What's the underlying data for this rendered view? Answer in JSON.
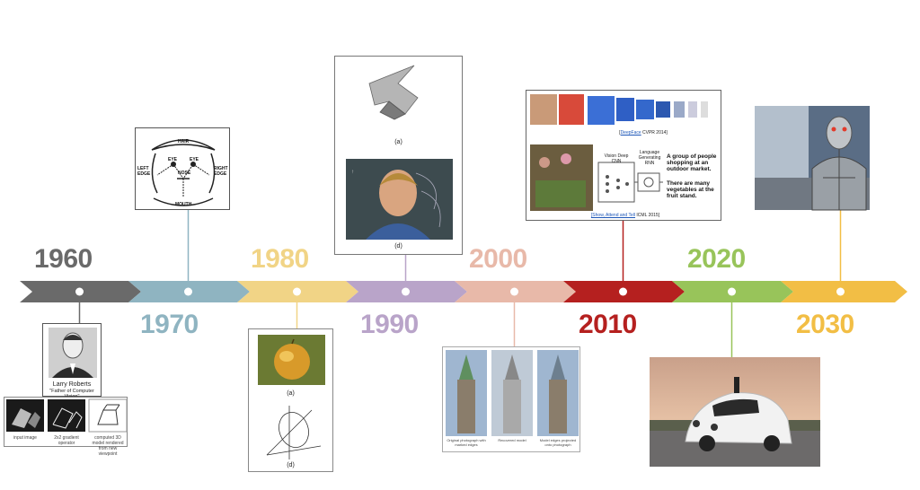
{
  "colors": {
    "1960": "#6a6a6a",
    "1970": "#8fb4c1",
    "1980": "#f1d486",
    "1990": "#b9a4c9",
    "2000": "#e8b9a9",
    "2010": "#b5201f",
    "2020": "#98c45a",
    "2030": "#f2be45"
  },
  "years": [
    {
      "label": "1960",
      "color": "#6a6a6a"
    },
    {
      "label": "1970",
      "color": "#8fb4c1"
    },
    {
      "label": "1980",
      "color": "#f1d486"
    },
    {
      "label": "1990",
      "color": "#b9a4c9"
    },
    {
      "label": "2000",
      "color": "#e8b9a9"
    },
    {
      "label": "2010",
      "color": "#b5201f"
    },
    {
      "label": "2020",
      "color": "#98c45a"
    },
    {
      "label": "2030",
      "color": "#f2be45"
    }
  ],
  "cards": {
    "c1960": {
      "name": "Larry Roberts",
      "subtitle": "\"Father of Computer Vision\"",
      "labels": [
        "input image",
        "2x2 gradient operator",
        "computed 3D model rendered from new viewpoint"
      ]
    },
    "c1970": {
      "hair": "HAIR",
      "left_edge": "LEFT EDGE",
      "right_edge": "RIGHT EDGE",
      "eye_left": "EYE",
      "eye_right": "EYE",
      "nose": "NOSE",
      "mouth": "MOUTH"
    },
    "c1980": {
      "caption_a": "(a)",
      "caption_d": "(d)"
    },
    "c1990": {
      "caption_a": "(a)",
      "caption_d": "(d)"
    },
    "c2000": {
      "labels": [
        "Original photograph with marked edges",
        "Recovered model",
        "Model edges projected onto photograph"
      ]
    },
    "c2010": {
      "deepface_link": "DeepFace",
      "deepface_rest": " CVPR 2014]",
      "bracket_open": "[",
      "vision_label": "Vision Deep CNN",
      "language_label": "Language Generating RNN",
      "text1": "A group of people shopping at an outdoor market.",
      "text2": "There are many vegetables at the fruit stand.",
      "sat_link": "[Show, Attend and Tell",
      "sat_rest": " ICML 2015]"
    }
  }
}
